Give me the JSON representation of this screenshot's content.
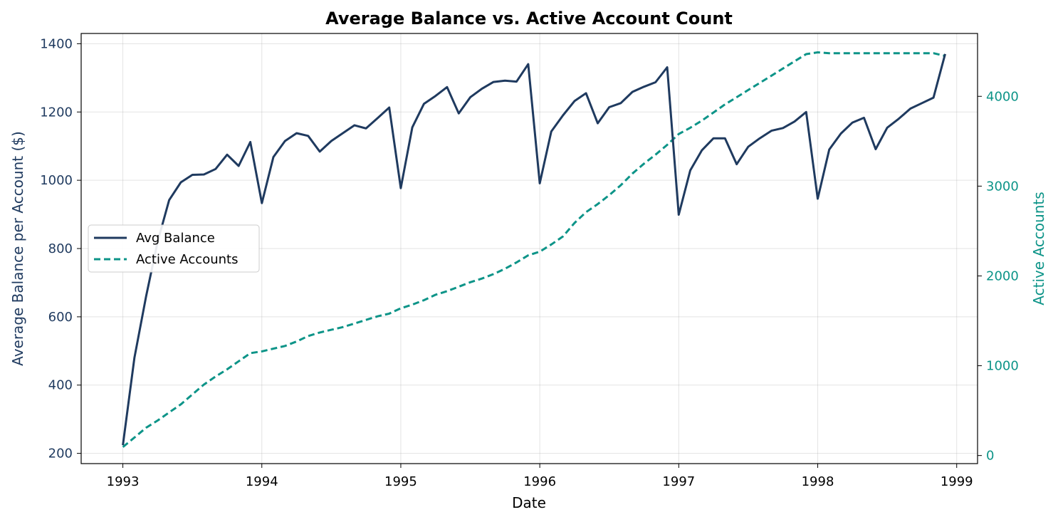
{
  "chart_data": {
    "type": "line",
    "title": "Average Balance vs. Active Account Count",
    "xlabel": "Date",
    "ylabel_left": "Average Balance per Account ($)",
    "ylabel_right": "Active Accounts",
    "xlim": [
      1992.7,
      1999.15
    ],
    "ylim_left": [
      170,
      1430
    ],
    "ylim_right": [
      -90,
      4700
    ],
    "x_ticks": [
      1993,
      1994,
      1995,
      1996,
      1997,
      1998,
      1999
    ],
    "y_ticks_left": [
      200,
      400,
      600,
      800,
      1000,
      1200,
      1400
    ],
    "y_ticks_right": [
      0,
      1000,
      2000,
      3000,
      4000
    ],
    "grid": true,
    "legend_position": "center-left",
    "colors": {
      "balance": "#1f3a5f",
      "accounts": "#0d9488"
    },
    "x": [
      1993.0,
      1993.083,
      1993.167,
      1993.25,
      1993.333,
      1993.417,
      1993.5,
      1993.583,
      1993.667,
      1993.75,
      1993.833,
      1993.917,
      1994.0,
      1994.083,
      1994.167,
      1994.25,
      1994.333,
      1994.417,
      1994.5,
      1994.583,
      1994.667,
      1994.75,
      1994.833,
      1994.917,
      1995.0,
      1995.083,
      1995.167,
      1995.25,
      1995.333,
      1995.417,
      1995.5,
      1995.583,
      1995.667,
      1995.75,
      1995.833,
      1995.917,
      1996.0,
      1996.083,
      1996.167,
      1996.25,
      1996.333,
      1996.417,
      1996.5,
      1996.583,
      1996.667,
      1996.75,
      1996.833,
      1996.917,
      1997.0,
      1997.083,
      1997.167,
      1997.25,
      1997.333,
      1997.417,
      1997.5,
      1997.583,
      1997.667,
      1997.75,
      1997.833,
      1997.917,
      1998.0,
      1998.083,
      1998.167,
      1998.25,
      1998.333,
      1998.417,
      1998.5,
      1998.583,
      1998.667,
      1998.75,
      1998.833,
      1998.917
    ],
    "series": [
      {
        "name": "Avg Balance",
        "axis": "left",
        "style": "solid",
        "values": [
          224,
          480,
          660,
          820,
          942,
          994,
          1016,
          1017,
          1033,
          1075,
          1042,
          1112,
          933,
          1068,
          1115,
          1138,
          1130,
          1084,
          1115,
          1138,
          1161,
          1152,
          1182,
          1213,
          977,
          1155,
          1224,
          1247,
          1273,
          1196,
          1243,
          1268,
          1288,
          1292,
          1289,
          1340,
          991,
          1143,
          1190,
          1232,
          1255,
          1167,
          1214,
          1226,
          1259,
          1274,
          1287,
          1331,
          899,
          1029,
          1088,
          1123,
          1123,
          1047,
          1098,
          1123,
          1145,
          1153,
          1172,
          1200,
          946,
          1090,
          1137,
          1169,
          1183,
          1091,
          1154,
          1180,
          1210,
          1226,
          1242,
          1370
        ]
      },
      {
        "name": "Active Accounts",
        "axis": "right",
        "style": "dashed",
        "values": [
          95,
          200,
          310,
          390,
          480,
          570,
          680,
          790,
          880,
          960,
          1050,
          1140,
          1160,
          1190,
          1220,
          1270,
          1330,
          1370,
          1400,
          1430,
          1470,
          1510,
          1550,
          1580,
          1640,
          1680,
          1730,
          1790,
          1830,
          1880,
          1930,
          1970,
          2020,
          2080,
          2150,
          2230,
          2270,
          2350,
          2440,
          2590,
          2710,
          2800,
          2900,
          3010,
          3140,
          3250,
          3350,
          3460,
          3580,
          3650,
          3730,
          3820,
          3910,
          3990,
          4070,
          4150,
          4230,
          4310,
          4390,
          4470,
          4490,
          4480,
          4480,
          4480,
          4480,
          4480,
          4480,
          4480,
          4480,
          4480,
          4480,
          4450
        ]
      }
    ]
  }
}
